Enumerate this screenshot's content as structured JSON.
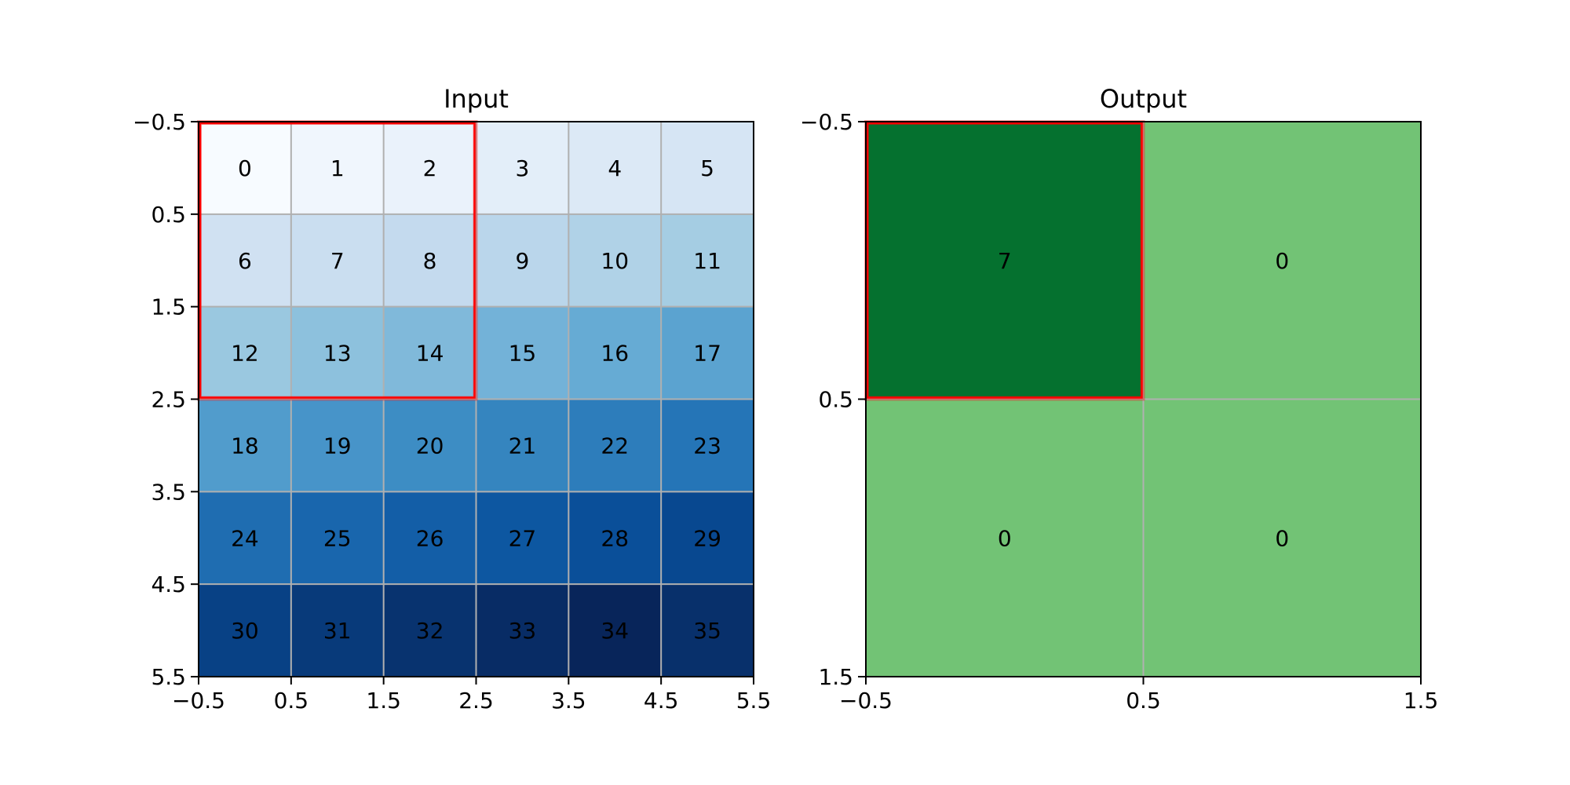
{
  "chart_data": [
    {
      "type": "heatmap",
      "title": "Input",
      "colormap": "Blues",
      "rows": 6,
      "cols": 6,
      "values": [
        [
          0,
          1,
          2,
          3,
          4,
          5
        ],
        [
          6,
          7,
          8,
          9,
          10,
          11
        ],
        [
          12,
          13,
          14,
          15,
          16,
          17
        ],
        [
          18,
          19,
          20,
          21,
          22,
          23
        ],
        [
          24,
          25,
          26,
          27,
          28,
          29
        ],
        [
          30,
          31,
          32,
          33,
          34,
          35
        ]
      ],
      "colors": [
        [
          "#f7fbff",
          "#f0f6fd",
          "#eaf2fb",
          "#e3eef9",
          "#dce9f6",
          "#d6e5f4"
        ],
        [
          "#d0e1f2",
          "#cadef0",
          "#c4daee",
          "#bad6eb",
          "#b0d2e7",
          "#a5cde3"
        ],
        [
          "#9ac8e0",
          "#8dc1dd",
          "#80b9da",
          "#73b2d8",
          "#66abd4",
          "#5ba3d0"
        ],
        [
          "#519ccc",
          "#4794c9",
          "#3d8dc4",
          "#3585bf",
          "#2d7dbb",
          "#2575b7"
        ],
        [
          "#1f6db1",
          "#1966ad",
          "#135ea7",
          "#0d57a1",
          "#0a4f99",
          "#084890"
        ],
        [
          "#084185",
          "#083a7a",
          "#08336f",
          "#082c65",
          "#08255a",
          "#08306b"
        ]
      ],
      "highlight": {
        "row_start": 0,
        "col_start": 0,
        "rows": 3,
        "cols": 3,
        "color": "#ff0000"
      },
      "xlim": [
        -0.5,
        5.5
      ],
      "ylim": [
        5.5,
        -0.5
      ],
      "xticks": [
        "−0.5",
        "0.5",
        "1.5",
        "2.5",
        "3.5",
        "4.5",
        "5.5"
      ],
      "yticks": [
        "−0.5",
        "0.5",
        "1.5",
        "2.5",
        "3.5",
        "4.5",
        "5.5"
      ],
      "grid": true
    },
    {
      "type": "heatmap",
      "title": "Output",
      "colormap": "Greens",
      "rows": 2,
      "cols": 2,
      "values": [
        [
          7,
          0
        ],
        [
          0,
          0
        ]
      ],
      "colors": [
        [
          "#05712f",
          "#72c375"
        ],
        [
          "#72c375",
          "#72c375"
        ]
      ],
      "highlight": {
        "row_start": 0,
        "col_start": 0,
        "rows": 1,
        "cols": 1,
        "color": "#ff0000"
      },
      "xlim": [
        -0.5,
        1.5
      ],
      "ylim": [
        1.5,
        -0.5
      ],
      "xticks": [
        "−0.5",
        "0.5",
        "1.5"
      ],
      "yticks": [
        "−0.5",
        "0.5",
        "1.5"
      ],
      "grid": true
    }
  ]
}
